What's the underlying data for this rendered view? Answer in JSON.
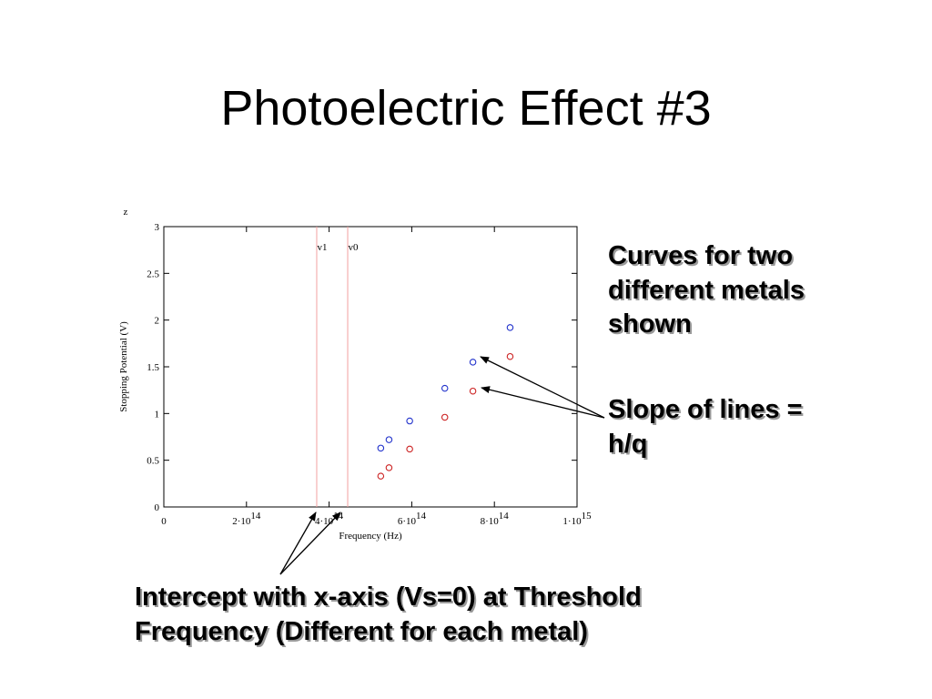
{
  "title": "Photoelectric Effect #3",
  "callouts": {
    "curves": [
      "Curves for two",
      "different metals",
      "shown"
    ],
    "slope": [
      "Slope of lines =",
      "h/q"
    ],
    "intercept": [
      "Intercept with x-axis (Vs=0) at Threshold",
      "Frequency (Different for each metal)"
    ]
  },
  "colors": {
    "series_a": "#2233cc",
    "series_b": "#cc2222",
    "threshold_line": "#f3a0a0"
  },
  "chart_data": {
    "type": "scatter",
    "corner_label": "z",
    "xlabel": "Frequency (Hz)",
    "ylabel": "Stopping Potential (V)",
    "xlim": [
      0,
      1000000000000000
    ],
    "ylim": [
      0,
      3
    ],
    "x_ticks": [
      {
        "value": 0,
        "base": "0",
        "exp": ""
      },
      {
        "value": 200000000000000,
        "base": "2·10",
        "exp": "14"
      },
      {
        "value": 400000000000000,
        "base": "4·10",
        "exp": "14"
      },
      {
        "value": 600000000000000,
        "base": "6·10",
        "exp": "14"
      },
      {
        "value": 800000000000000,
        "base": "8·10",
        "exp": "14"
      },
      {
        "value": 1000000000000000,
        "base": "1·10",
        "exp": "15"
      }
    ],
    "y_ticks": [
      {
        "value": 0,
        "label": "0"
      },
      {
        "value": 0.5,
        "label": "0.5"
      },
      {
        "value": 1,
        "label": "1"
      },
      {
        "value": 1.5,
        "label": "1.5"
      },
      {
        "value": 2,
        "label": "2"
      },
      {
        "value": 2.5,
        "label": "2.5"
      },
      {
        "value": 3,
        "label": "3"
      }
    ],
    "threshold_lines": [
      {
        "label": "v1",
        "x": 370000000000000
      },
      {
        "label": "v0",
        "x": 445000000000000
      }
    ],
    "grid": false,
    "series": [
      {
        "color": "#2233cc",
        "x": [
          525000000000000,
          545000000000000,
          595000000000000,
          680000000000000,
          748000000000000,
          838000000000000
        ],
        "y": [
          0.63,
          0.72,
          0.92,
          1.27,
          1.55,
          1.92
        ]
      },
      {
        "color": "#cc2222",
        "x": [
          525000000000000,
          545000000000000,
          595000000000000,
          680000000000000,
          748000000000000,
          838000000000000
        ],
        "y": [
          0.33,
          0.42,
          0.62,
          0.96,
          1.24,
          1.61
        ]
      }
    ]
  }
}
